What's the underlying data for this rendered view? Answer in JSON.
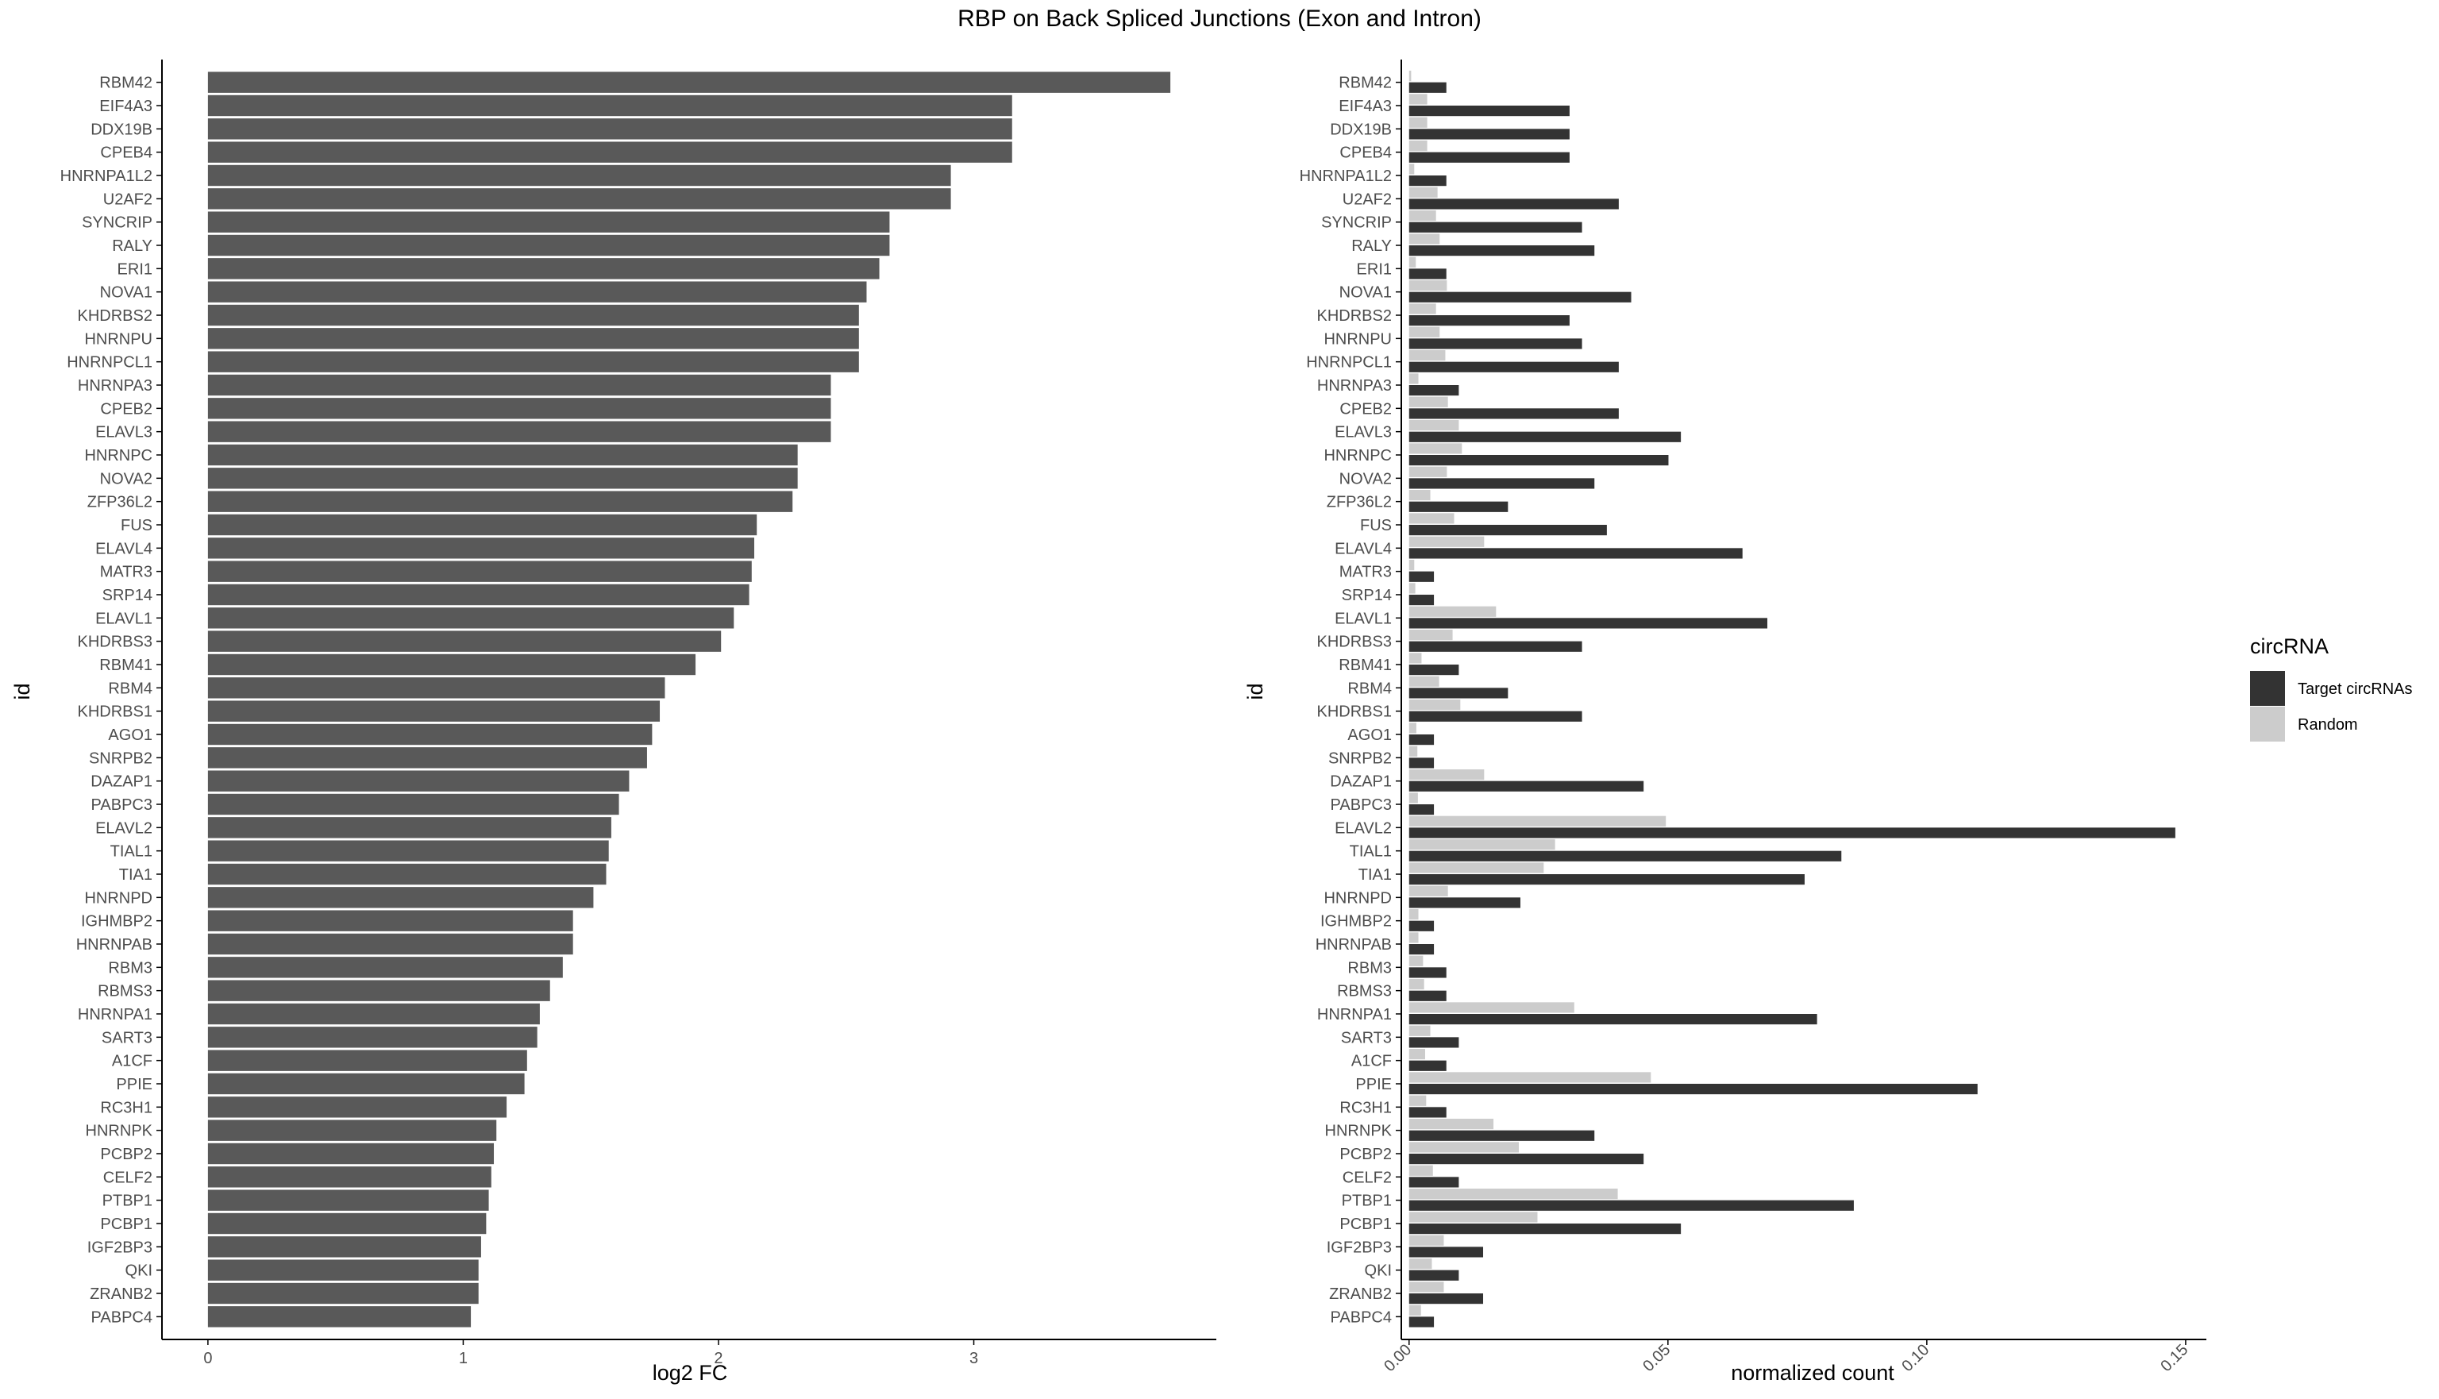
{
  "title": "RBP on Back Spliced Junctions (Exon and Intron)",
  "colors": {
    "log2fc_bar": "#595959",
    "target": "#333333",
    "random": "#cccccc",
    "axis": "#000000",
    "tick_text": "#4d4d4d"
  },
  "chart_data": [
    {
      "type": "bar",
      "orientation": "horizontal",
      "xlabel": "log2 FC",
      "ylabel": "id",
      "xlim": [
        -0.18,
        3.95
      ],
      "xticks": [
        0,
        1,
        2,
        3
      ],
      "grid": false,
      "categories": [
        "RBM42",
        "EIF4A3",
        "DDX19B",
        "CPEB4",
        "HNRNPA1L2",
        "U2AF2",
        "SYNCRIP",
        "RALY",
        "ERI1",
        "NOVA1",
        "KHDRBS2",
        "HNRNPU",
        "HNRNPCL1",
        "HNRNPA3",
        "CPEB2",
        "ELAVL3",
        "HNRNPC",
        "NOVA2",
        "ZFP36L2",
        "FUS",
        "ELAVL4",
        "MATR3",
        "SRP14",
        "ELAVL1",
        "KHDRBS3",
        "RBM41",
        "RBM4",
        "KHDRBS1",
        "AGO1",
        "SNRPB2",
        "DAZAP1",
        "PABPC3",
        "ELAVL2",
        "TIAL1",
        "TIA1",
        "HNRNPD",
        "IGHMBP2",
        "HNRNPAB",
        "RBM3",
        "RBMS3",
        "HNRNPA1",
        "SART3",
        "A1CF",
        "PPIE",
        "RC3H1",
        "HNRNPK",
        "PCBP2",
        "CELF2",
        "PTBP1",
        "PCBP1",
        "IGF2BP3",
        "QKI",
        "ZRANB2",
        "PABPC4"
      ],
      "values": [
        3.77,
        3.15,
        3.15,
        3.15,
        2.91,
        2.91,
        2.67,
        2.67,
        2.63,
        2.58,
        2.55,
        2.55,
        2.55,
        2.44,
        2.44,
        2.44,
        2.31,
        2.31,
        2.29,
        2.15,
        2.14,
        2.13,
        2.12,
        2.06,
        2.01,
        1.91,
        1.79,
        1.77,
        1.74,
        1.72,
        1.65,
        1.61,
        1.58,
        1.57,
        1.56,
        1.51,
        1.43,
        1.43,
        1.39,
        1.34,
        1.3,
        1.29,
        1.25,
        1.24,
        1.17,
        1.13,
        1.12,
        1.11,
        1.1,
        1.09,
        1.07,
        1.06,
        1.06,
        1.03
      ]
    },
    {
      "type": "bar",
      "orientation": "horizontal",
      "xlabel": "normalized count",
      "ylabel": "id",
      "xlim": [
        -0.0015,
        0.154
      ],
      "xticks": [
        0,
        0.05,
        0.1,
        0.15
      ],
      "xtick_labels": [
        "0.00",
        "0.05",
        "0.10",
        "0.15"
      ],
      "grid": false,
      "legend": {
        "title": "circRNA",
        "position": "right"
      },
      "categories": [
        "RBM42",
        "EIF4A3",
        "DDX19B",
        "CPEB4",
        "HNRNPA1L2",
        "U2AF2",
        "SYNCRIP",
        "RALY",
        "ERI1",
        "NOVA1",
        "KHDRBS2",
        "HNRNPU",
        "HNRNPCL1",
        "HNRNPA3",
        "CPEB2",
        "ELAVL3",
        "HNRNPC",
        "NOVA2",
        "ZFP36L2",
        "FUS",
        "ELAVL4",
        "MATR3",
        "SRP14",
        "ELAVL1",
        "KHDRBS3",
        "RBM41",
        "RBM4",
        "KHDRBS1",
        "AGO1",
        "SNRPB2",
        "DAZAP1",
        "PABPC3",
        "ELAVL2",
        "TIAL1",
        "TIA1",
        "HNRNPD",
        "IGHMBP2",
        "HNRNPAB",
        "RBM3",
        "RBMS3",
        "HNRNPA1",
        "SART3",
        "A1CF",
        "PPIE",
        "RC3H1",
        "HNRNPK",
        "PCBP2",
        "CELF2",
        "PTBP1",
        "PCBP1",
        "IGF2BP3",
        "QKI",
        "ZRANB2",
        "PABPC4"
      ],
      "series": [
        {
          "name": "Target circRNAs",
          "values": [
            0.0072,
            0.031,
            0.031,
            0.031,
            0.0072,
            0.0405,
            0.0334,
            0.0358,
            0.0072,
            0.0429,
            0.031,
            0.0334,
            0.0405,
            0.0096,
            0.0405,
            0.0525,
            0.0501,
            0.0358,
            0.0191,
            0.0382,
            0.0644,
            0.0048,
            0.0048,
            0.0692,
            0.0334,
            0.0096,
            0.0191,
            0.0334,
            0.0048,
            0.0048,
            0.0453,
            0.0048,
            0.148,
            0.0835,
            0.0764,
            0.0215,
            0.0048,
            0.0048,
            0.0072,
            0.0072,
            0.0788,
            0.0096,
            0.0072,
            0.1098,
            0.0072,
            0.0358,
            0.0453,
            0.0096,
            0.0859,
            0.0525,
            0.0143,
            0.0096,
            0.0143,
            0.0048
          ]
        },
        {
          "name": "Random",
          "values": [
            0.0004,
            0.0035,
            0.0035,
            0.0035,
            0.001,
            0.0055,
            0.0052,
            0.0059,
            0.0013,
            0.0073,
            0.0052,
            0.0059,
            0.007,
            0.0018,
            0.0075,
            0.0096,
            0.0102,
            0.0073,
            0.0041,
            0.0087,
            0.0145,
            0.001,
            0.0012,
            0.0168,
            0.0084,
            0.0024,
            0.0058,
            0.0099,
            0.0014,
            0.0016,
            0.0145,
            0.0017,
            0.0496,
            0.0282,
            0.026,
            0.0075,
            0.0018,
            0.0018,
            0.0027,
            0.0029,
            0.0319,
            0.0041,
            0.0031,
            0.0467,
            0.0033,
            0.0163,
            0.0212,
            0.0046,
            0.0403,
            0.0248,
            0.0067,
            0.0044,
            0.0067,
            0.0023
          ]
        }
      ]
    }
  ]
}
